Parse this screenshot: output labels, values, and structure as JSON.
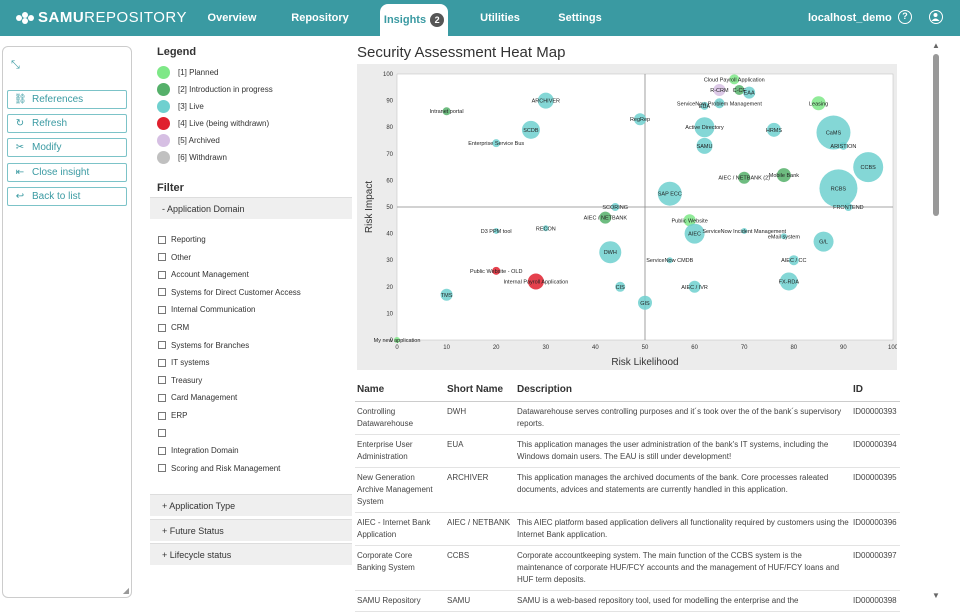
{
  "app": {
    "logo_bold": "SAMU",
    "logo_light": "REPOSITORY",
    "context": "localhost_demo"
  },
  "nav": [
    {
      "label": "Overview"
    },
    {
      "label": "Repository"
    },
    {
      "label": "Insights",
      "badge": "2"
    },
    {
      "label": "Utilities"
    },
    {
      "label": "Settings"
    }
  ],
  "toolbar": {
    "help_icon": "?",
    "user_icon": "user-icon"
  },
  "left_buttons": [
    {
      "label": "References",
      "icon": "⛓"
    },
    {
      "label": "Refresh",
      "icon": "↻"
    },
    {
      "label": "Modify",
      "icon": "✂"
    },
    {
      "label": "Close insight",
      "icon": "⇤"
    },
    {
      "label": "Back to list",
      "icon": "↩"
    }
  ],
  "legend": {
    "title": "Legend",
    "items": [
      {
        "label": "[1] Planned",
        "color": "#7ee887"
      },
      {
        "label": "[2] Introduction in progress",
        "color": "#55b06a"
      },
      {
        "label": "[3] Live",
        "color": "#6fd0cf"
      },
      {
        "label": "[4] Live (being withdrawn)",
        "color": "#e0202e"
      },
      {
        "label": "[5] Archived",
        "color": "#d6bfe3"
      },
      {
        "label": "[6] Withdrawn",
        "color": "#c0c0c0"
      }
    ]
  },
  "filter": {
    "title": "Filter",
    "domain_header": "- Application Domain",
    "domains": [
      "Reporting",
      "Other",
      "Account Management",
      "Systems for Direct Customer Access",
      "Internal Communication",
      "CRM",
      "Systems for Branches",
      "IT systems",
      "Treasury",
      "Card Management",
      "ERP",
      "",
      "Integration Domain",
      "Scoring and Risk Management"
    ],
    "sections": [
      "+ Application Type",
      "+ Future Status",
      "+ Lifecycle status"
    ]
  },
  "heatmap_title": "Security Assessment Heat Map",
  "chart_data": {
    "type": "scatter",
    "title": "Security Assessment Heat Map",
    "xlabel": "Risk Likelihood",
    "ylabel": "Risk Impact",
    "xlim": [
      0,
      100
    ],
    "ylim": [
      0,
      100
    ],
    "xticks": [
      0,
      10,
      20,
      30,
      40,
      50,
      60,
      70,
      80,
      90,
      100
    ],
    "yticks": [
      0,
      10,
      20,
      30,
      40,
      50,
      60,
      70,
      80,
      90,
      100
    ],
    "points": [
      {
        "name": "Cloud Payroll Application",
        "x": 68,
        "y": 98,
        "r": 5,
        "status": 1
      },
      {
        "name": "R-CRM",
        "x": 65,
        "y": 94,
        "r": 6,
        "status": 5
      },
      {
        "name": "C-CF",
        "x": 69,
        "y": 94,
        "r": 5,
        "status": 2
      },
      {
        "name": "EAA",
        "x": 71,
        "y": 93,
        "r": 6,
        "status": 3
      },
      {
        "name": "ServiceNow Problem Management",
        "x": 65,
        "y": 89,
        "r": 5,
        "status": 3
      },
      {
        "name": "EUA",
        "x": 62,
        "y": 88,
        "r": 4,
        "status": 3
      },
      {
        "name": "ARCHIVER",
        "x": 30,
        "y": 90,
        "r": 8,
        "status": 3
      },
      {
        "name": "Leasing",
        "x": 85,
        "y": 89,
        "r": 7,
        "status": 1
      },
      {
        "name": "Intranet portal",
        "x": 10,
        "y": 86,
        "r": 4,
        "status": 2
      },
      {
        "name": "RegRep",
        "x": 49,
        "y": 83,
        "r": 6,
        "status": 3
      },
      {
        "name": "SCDB",
        "x": 27,
        "y": 79,
        "r": 9,
        "status": 3
      },
      {
        "name": "Active Directory",
        "x": 62,
        "y": 80,
        "r": 10,
        "status": 3
      },
      {
        "name": "HRMS",
        "x": 76,
        "y": 79,
        "r": 7,
        "status": 3
      },
      {
        "name": "CaMS",
        "x": 88,
        "y": 78,
        "r": 17,
        "status": 3
      },
      {
        "name": "ARISTION",
        "x": 90,
        "y": 73,
        "r": 4,
        "status": 3
      },
      {
        "name": "Enterprise Service Bus",
        "x": 20,
        "y": 74,
        "r": 4,
        "status": 3
      },
      {
        "name": "SAMU",
        "x": 62,
        "y": 73,
        "r": 8,
        "status": 3
      },
      {
        "name": "CCBS",
        "x": 95,
        "y": 65,
        "r": 15,
        "status": 3
      },
      {
        "name": "AIEC / NETBANK (2)",
        "x": 70,
        "y": 61,
        "r": 6,
        "status": 2
      },
      {
        "name": "Mobile Bank",
        "x": 78,
        "y": 62,
        "r": 7,
        "status": 2
      },
      {
        "name": "RCBS",
        "x": 89,
        "y": 57,
        "r": 19,
        "status": 3
      },
      {
        "name": "SAP ECC",
        "x": 55,
        "y": 55,
        "r": 12,
        "status": 3
      },
      {
        "name": "SCORING",
        "x": 44,
        "y": 50,
        "r": 4,
        "status": 3
      },
      {
        "name": "FRONTEND",
        "x": 91,
        "y": 50,
        "r": 4,
        "status": 3
      },
      {
        "name": "AIEC / NETBANK",
        "x": 42,
        "y": 46,
        "r": 6,
        "status": 2
      },
      {
        "name": "Public Website",
        "x": 59,
        "y": 45,
        "r": 6,
        "status": 1
      },
      {
        "name": "D3 PPM tool",
        "x": 20,
        "y": 41,
        "r": 3,
        "status": 3
      },
      {
        "name": "RECON",
        "x": 30,
        "y": 42,
        "r": 3,
        "status": 3
      },
      {
        "name": "AIEC",
        "x": 60,
        "y": 40,
        "r": 10,
        "status": 3
      },
      {
        "name": "ServiceNow Incident Management",
        "x": 70,
        "y": 41,
        "r": 3,
        "status": 3
      },
      {
        "name": "eMail system",
        "x": 78,
        "y": 39,
        "r": 3,
        "status": 3
      },
      {
        "name": "G/L",
        "x": 86,
        "y": 37,
        "r": 10,
        "status": 3
      },
      {
        "name": "DWH",
        "x": 43,
        "y": 33,
        "r": 11,
        "status": 3
      },
      {
        "name": "ServiceNow CMDB",
        "x": 55,
        "y": 30,
        "r": 3,
        "status": 3
      },
      {
        "name": "AIEC / CC",
        "x": 80,
        "y": 30,
        "r": 5,
        "status": 3
      },
      {
        "name": "Public Website - OLD",
        "x": 20,
        "y": 26,
        "r": 4,
        "status": 4
      },
      {
        "name": "Internal Payroll Application",
        "x": 28,
        "y": 22,
        "r": 8,
        "status": 4
      },
      {
        "name": "FX-RDA",
        "x": 79,
        "y": 22,
        "r": 9,
        "status": 3
      },
      {
        "name": "CIS",
        "x": 45,
        "y": 20,
        "r": 5,
        "status": 3
      },
      {
        "name": "AIEC / IVR",
        "x": 60,
        "y": 20,
        "r": 6,
        "status": 3
      },
      {
        "name": "TMS",
        "x": 10,
        "y": 17,
        "r": 6,
        "status": 3
      },
      {
        "name": "GIS",
        "x": 50,
        "y": 14,
        "r": 7,
        "status": 3
      },
      {
        "name": "My new application",
        "x": 0,
        "y": 0,
        "r": 3,
        "status": 1
      }
    ]
  },
  "table": {
    "headers": [
      "Name",
      "Short Name",
      "Description",
      "ID"
    ],
    "rows": [
      {
        "name": "Controlling Datawarehouse",
        "short": "DWH",
        "desc": "Datawarehouse serves controlling purposes and it´s took over the of the bank´s supervisory reports.",
        "id": "ID00000393"
      },
      {
        "name": "Enterprise User Administration",
        "short": "EUA",
        "desc": "This application manages the user administration of the bank's IT systems, including the Windows domain users. The EAU is still under development!",
        "id": "ID00000394"
      },
      {
        "name": "New Generation Archive Management System",
        "short": "ARCHIVER",
        "desc": "This application manages the archived documents of the bank. Core processes raleated documents, advices and statements are currently handled in this application.",
        "id": "ID00000395"
      },
      {
        "name": "AIEC - Internet Bank Application",
        "short": "AIEC / NETBANK",
        "desc": "This AIEC platform based application delivers all functionality required by customers using the Internet Bank application.",
        "id": "ID00000396"
      },
      {
        "name": "Corporate Core Banking System",
        "short": "CCBS",
        "desc": "Corporate accountkeeping system. The main function of the CCBS system is the maintenance of corporate HUF/FCY accounts and the management of HUF/FCY loans and HUF term deposits.",
        "id": "ID00000397"
      },
      {
        "name": "SAMU Repository",
        "short": "SAMU",
        "desc": "SAMU is a web-based repository tool, used for modelling the enterprise and the",
        "id": "ID00000398"
      }
    ]
  }
}
